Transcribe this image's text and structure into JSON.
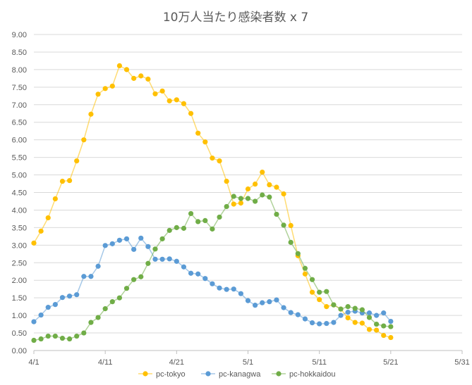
{
  "chart_data": {
    "type": "line",
    "title": "10万人当たり感染者数 x 7",
    "xlabel": "",
    "ylabel": "",
    "ylim": [
      0,
      9
    ],
    "y_ticks": [
      "0.00",
      "0.50",
      "1.00",
      "1.50",
      "2.00",
      "2.50",
      "3.00",
      "3.50",
      "4.00",
      "4.50",
      "5.00",
      "5.50",
      "6.00",
      "6.50",
      "7.00",
      "7.50",
      "8.00",
      "8.50",
      "9.00"
    ],
    "x_range_days": [
      0,
      60
    ],
    "x_ticks": [
      "4/1",
      "4/11",
      "4/21",
      "5/1",
      "5/11",
      "5/21",
      "5/31"
    ],
    "x_dates": [
      "4/1",
      "4/2",
      "4/3",
      "4/4",
      "4/5",
      "4/6",
      "4/7",
      "4/8",
      "4/9",
      "4/10",
      "4/11",
      "4/12",
      "4/13",
      "4/14",
      "4/15",
      "4/16",
      "4/17",
      "4/18",
      "4/19",
      "4/20",
      "4/21",
      "4/22",
      "4/23",
      "4/24",
      "4/25",
      "4/26",
      "4/27",
      "4/28",
      "4/29",
      "4/30",
      "5/1",
      "5/2",
      "5/3",
      "5/4",
      "5/5",
      "5/6",
      "5/7",
      "5/8",
      "5/9",
      "5/10",
      "5/11",
      "5/12",
      "5/13",
      "5/14",
      "5/15",
      "5/16",
      "5/17",
      "5/18",
      "5/19",
      "5/20",
      "5/21"
    ],
    "grid": true,
    "legend_position": "bottom",
    "series": [
      {
        "name": "pc-tokyo",
        "color": "#ffc000",
        "values": [
          3.06,
          3.4,
          3.78,
          4.32,
          4.82,
          4.84,
          5.4,
          6.0,
          6.73,
          7.3,
          7.46,
          7.53,
          8.11,
          8.0,
          7.75,
          7.82,
          7.73,
          7.31,
          7.39,
          7.11,
          7.14,
          7.03,
          6.75,
          6.19,
          5.94,
          5.48,
          5.4,
          4.82,
          4.17,
          4.2,
          4.6,
          4.74,
          5.08,
          4.72,
          4.65,
          4.46,
          3.56,
          2.7,
          2.18,
          1.66,
          1.45,
          1.25,
          1.3,
          1.18,
          0.93,
          0.8,
          0.78,
          0.6,
          0.58,
          0.43,
          0.37
        ]
      },
      {
        "name": "pc-kanagwa",
        "color": "#5b9bd5",
        "values": [
          0.82,
          1.01,
          1.23,
          1.31,
          1.51,
          1.55,
          1.59,
          2.11,
          2.11,
          2.4,
          2.99,
          3.04,
          3.14,
          3.18,
          2.88,
          3.2,
          2.96,
          2.6,
          2.6,
          2.61,
          2.54,
          2.38,
          2.2,
          2.18,
          2.05,
          1.9,
          1.78,
          1.74,
          1.75,
          1.62,
          1.42,
          1.29,
          1.36,
          1.39,
          1.44,
          1.22,
          1.08,
          1.02,
          0.9,
          0.79,
          0.76,
          0.77,
          0.8,
          1.0,
          1.09,
          1.12,
          1.07,
          1.07,
          1.0,
          1.07,
          0.83
        ]
      },
      {
        "name": "pc-hokkaidou",
        "color": "#70ad47",
        "values": [
          0.29,
          0.33,
          0.41,
          0.41,
          0.35,
          0.33,
          0.41,
          0.5,
          0.8,
          0.94,
          1.19,
          1.39,
          1.5,
          1.77,
          2.02,
          2.1,
          2.48,
          2.89,
          3.18,
          3.42,
          3.5,
          3.48,
          3.9,
          3.67,
          3.7,
          3.46,
          3.8,
          4.1,
          4.39,
          4.33,
          4.33,
          4.25,
          4.43,
          4.37,
          3.88,
          3.57,
          3.08,
          2.76,
          2.34,
          2.02,
          1.66,
          1.68,
          1.3,
          1.18,
          1.25,
          1.2,
          1.16,
          0.94,
          0.75,
          0.7,
          0.68
        ]
      }
    ]
  }
}
